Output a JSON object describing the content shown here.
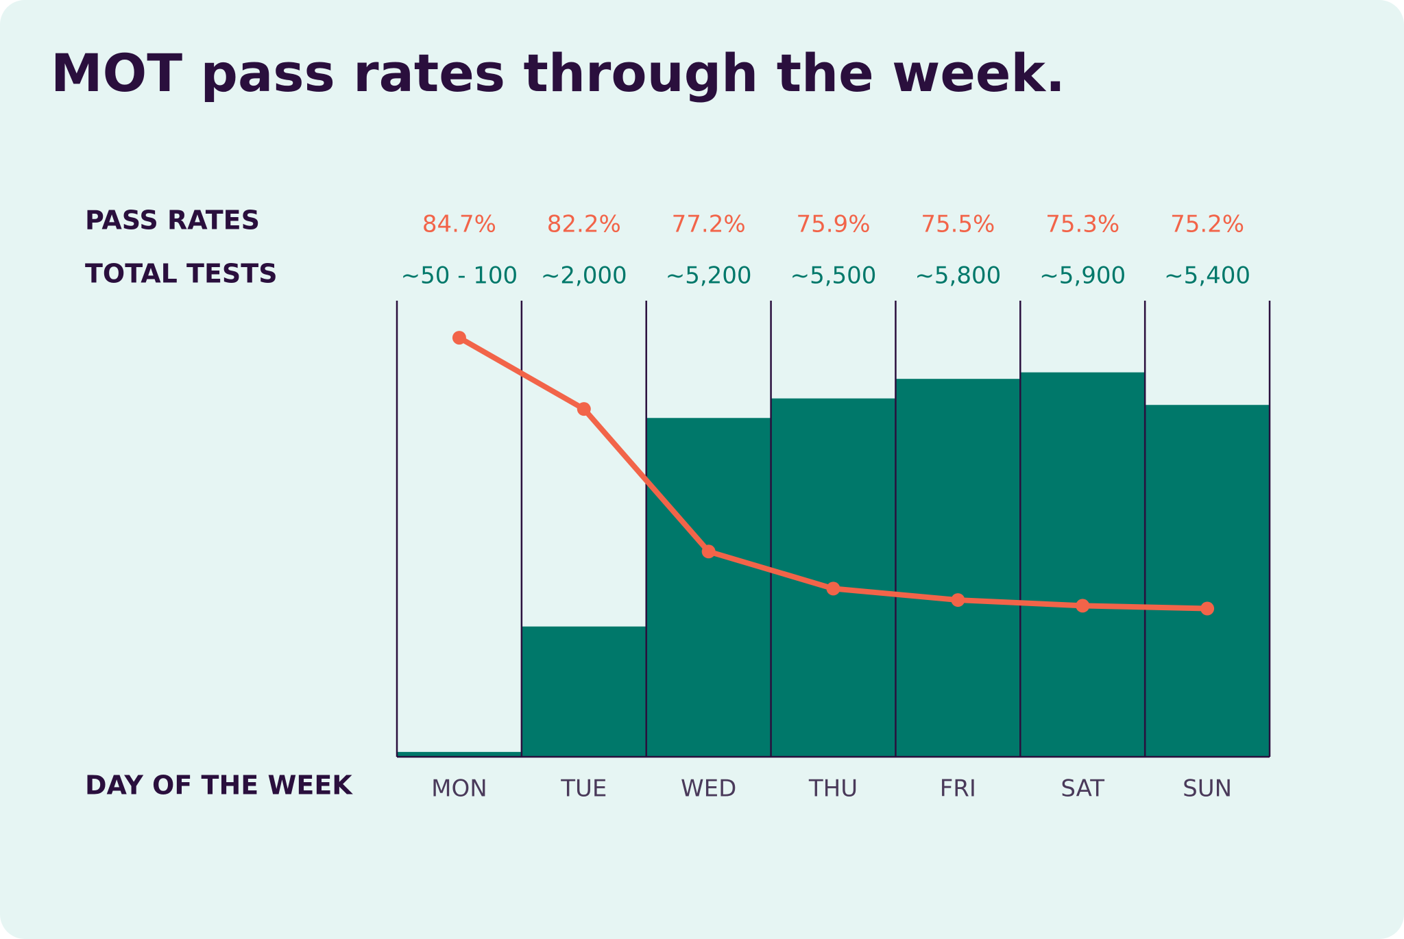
{
  "chart_data": {
    "type": "bar",
    "title": "MOT pass rates through the week.",
    "x_label": "DAY OF THE WEEK",
    "categories": [
      "MON",
      "TUE",
      "WED",
      "THU",
      "FRI",
      "SAT",
      "SUN"
    ],
    "ylim": [
      0,
      7000
    ],
    "y2lim": [
      70,
      86
    ],
    "series": [
      {
        "name": "PASS RATES",
        "type": "line",
        "axis": "y2",
        "color": "#f26449",
        "values": [
          84.7,
          82.2,
          77.2,
          75.9,
          75.5,
          75.3,
          75.2
        ],
        "value_labels": [
          "84.7%",
          "82.2%",
          "77.2%",
          "75.9%",
          "75.5%",
          "75.3%",
          "75.2%"
        ]
      },
      {
        "name": "TOTAL TESTS",
        "type": "bar",
        "color": "#00786a",
        "values": [
          75,
          2000,
          5200,
          5500,
          5800,
          5900,
          5400
        ],
        "value_labels": [
          "~50 - 100",
          "~2,000",
          "~5,200",
          "~5,500",
          "~5,800",
          "~5,900",
          "~5,400"
        ]
      }
    ]
  }
}
